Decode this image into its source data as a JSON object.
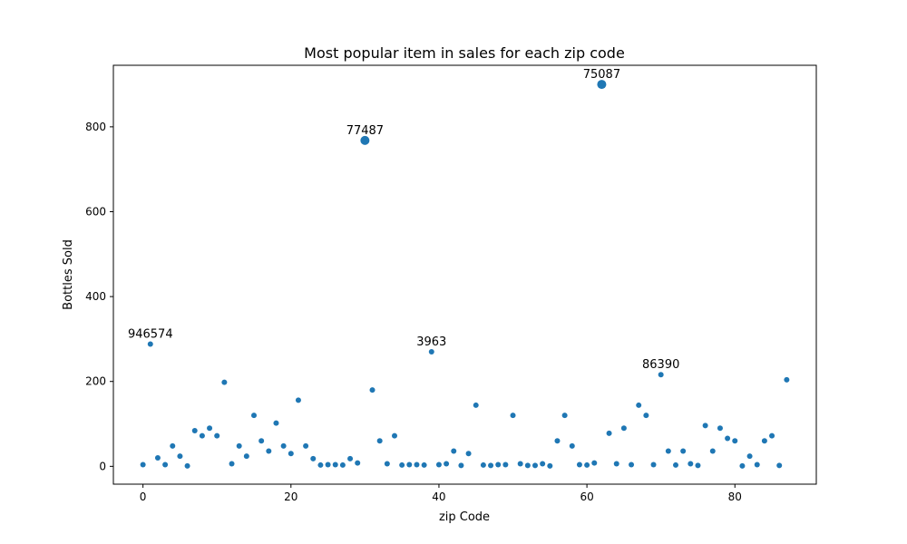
{
  "chart_data": {
    "type": "scatter",
    "title": "Most popular item in sales for each zip code",
    "xlabel": "zip Code",
    "ylabel": "Bottles Sold",
    "xlim": [
      -4,
      91
    ],
    "ylim": [
      -42,
      945
    ],
    "xticks": [
      0,
      20,
      40,
      60,
      80
    ],
    "yticks": [
      0,
      200,
      400,
      600,
      800
    ],
    "grid": false,
    "color": "#1f77b4",
    "points": [
      {
        "x": 0,
        "y": 4
      },
      {
        "x": 1,
        "y": 288
      },
      {
        "x": 2,
        "y": 20
      },
      {
        "x": 3,
        "y": 4
      },
      {
        "x": 4,
        "y": 48
      },
      {
        "x": 5,
        "y": 24
      },
      {
        "x": 6,
        "y": 1
      },
      {
        "x": 7,
        "y": 84
      },
      {
        "x": 8,
        "y": 72
      },
      {
        "x": 9,
        "y": 90
      },
      {
        "x": 10,
        "y": 72
      },
      {
        "x": 11,
        "y": 198
      },
      {
        "x": 12,
        "y": 6
      },
      {
        "x": 13,
        "y": 48
      },
      {
        "x": 14,
        "y": 24
      },
      {
        "x": 15,
        "y": 120
      },
      {
        "x": 16,
        "y": 60
      },
      {
        "x": 17,
        "y": 36
      },
      {
        "x": 18,
        "y": 102
      },
      {
        "x": 19,
        "y": 48
      },
      {
        "x": 20,
        "y": 30
      },
      {
        "x": 21,
        "y": 156
      },
      {
        "x": 22,
        "y": 48
      },
      {
        "x": 23,
        "y": 18
      },
      {
        "x": 24,
        "y": 3
      },
      {
        "x": 25,
        "y": 4
      },
      {
        "x": 26,
        "y": 4
      },
      {
        "x": 27,
        "y": 3
      },
      {
        "x": 28,
        "y": 18
      },
      {
        "x": 29,
        "y": 8
      },
      {
        "x": 30,
        "y": 768
      },
      {
        "x": 31,
        "y": 180
      },
      {
        "x": 32,
        "y": 60
      },
      {
        "x": 33,
        "y": 6
      },
      {
        "x": 34,
        "y": 72
      },
      {
        "x": 35,
        "y": 3
      },
      {
        "x": 36,
        "y": 4
      },
      {
        "x": 37,
        "y": 4
      },
      {
        "x": 38,
        "y": 3
      },
      {
        "x": 39,
        "y": 270
      },
      {
        "x": 40,
        "y": 4
      },
      {
        "x": 41,
        "y": 6
      },
      {
        "x": 42,
        "y": 36
      },
      {
        "x": 43,
        "y": 2
      },
      {
        "x": 44,
        "y": 30
      },
      {
        "x": 45,
        "y": 144
      },
      {
        "x": 46,
        "y": 3
      },
      {
        "x": 47,
        "y": 2
      },
      {
        "x": 48,
        "y": 4
      },
      {
        "x": 49,
        "y": 4
      },
      {
        "x": 50,
        "y": 120
      },
      {
        "x": 51,
        "y": 6
      },
      {
        "x": 52,
        "y": 2
      },
      {
        "x": 53,
        "y": 2
      },
      {
        "x": 54,
        "y": 6
      },
      {
        "x": 55,
        "y": 1
      },
      {
        "x": 56,
        "y": 60
      },
      {
        "x": 57,
        "y": 120
      },
      {
        "x": 58,
        "y": 48
      },
      {
        "x": 59,
        "y": 4
      },
      {
        "x": 60,
        "y": 3
      },
      {
        "x": 61,
        "y": 8
      },
      {
        "x": 62,
        "y": 900
      },
      {
        "x": 63,
        "y": 78
      },
      {
        "x": 64,
        "y": 6
      },
      {
        "x": 65,
        "y": 90
      },
      {
        "x": 66,
        "y": 4
      },
      {
        "x": 67,
        "y": 144
      },
      {
        "x": 68,
        "y": 120
      },
      {
        "x": 69,
        "y": 4
      },
      {
        "x": 70,
        "y": 216
      },
      {
        "x": 71,
        "y": 36
      },
      {
        "x": 72,
        "y": 3
      },
      {
        "x": 73,
        "y": 36
      },
      {
        "x": 74,
        "y": 6
      },
      {
        "x": 75,
        "y": 2
      },
      {
        "x": 76,
        "y": 96
      },
      {
        "x": 77,
        "y": 36
      },
      {
        "x": 78,
        "y": 90
      },
      {
        "x": 79,
        "y": 66
      },
      {
        "x": 80,
        "y": 60
      },
      {
        "x": 81,
        "y": 1
      },
      {
        "x": 82,
        "y": 24
      },
      {
        "x": 83,
        "y": 4
      },
      {
        "x": 84,
        "y": 60
      },
      {
        "x": 85,
        "y": 72
      },
      {
        "x": 86,
        "y": 2
      },
      {
        "x": 87,
        "y": 204
      }
    ],
    "annotations": [
      {
        "x": 1,
        "y": 288,
        "text": "946574"
      },
      {
        "x": 30,
        "y": 768,
        "text": "77487"
      },
      {
        "x": 39,
        "y": 270,
        "text": "3963"
      },
      {
        "x": 62,
        "y": 900,
        "text": "75087"
      },
      {
        "x": 70,
        "y": 216,
        "text": "86390"
      }
    ]
  }
}
